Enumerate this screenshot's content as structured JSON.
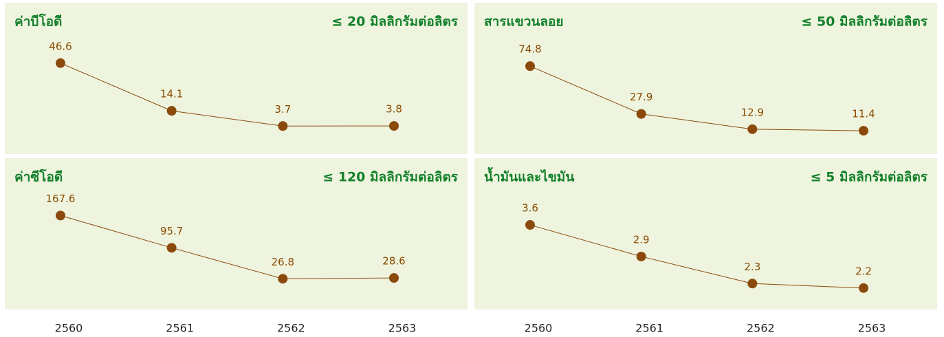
{
  "chart_data": [
    {
      "type": "line",
      "title": "ค่าบีโอดี",
      "subtitle": "≤ 20 มิลลิกรัมต่อลิตร",
      "categories": [
        "2560",
        "2561",
        "2562",
        "2563"
      ],
      "values": [
        46.6,
        14.1,
        3.7,
        3.8
      ],
      "color": "#8b4a0c",
      "ylim": [
        -6,
        69
      ]
    },
    {
      "type": "line",
      "title": "สารแขวนลอย",
      "subtitle": "≤ 50 มิลลิกรัมต่อลิตร",
      "categories": [
        "2560",
        "2561",
        "2562",
        "2563"
      ],
      "values": [
        74.8,
        27.9,
        12.9,
        11.4
      ],
      "color": "#8b4a0c",
      "ylim": [
        2,
        110
      ]
    },
    {
      "type": "line",
      "title": "ค่าซีโอดี",
      "subtitle": "≤ 120 มิลลิกรัมต่อลิตร",
      "categories": [
        "2560",
        "2561",
        "2562",
        "2563"
      ],
      "values": [
        167.6,
        95.7,
        26.8,
        28.6
      ],
      "color": "#8b4a0c",
      "ylim": [
        -11,
        234
      ]
    },
    {
      "type": "line",
      "title": "น้ำมันและไขมัน",
      "subtitle": "≤ 5 มิลลิกรัมต่อลิตร",
      "categories": [
        "2560",
        "2561",
        "2562",
        "2563"
      ],
      "values": [
        3.6,
        2.9,
        2.3,
        2.2
      ],
      "color": "#8b4a0c",
      "ylim": [
        2.03,
        4.47
      ]
    }
  ]
}
